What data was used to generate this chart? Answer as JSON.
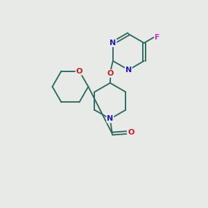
{
  "background_color": "#e8eae8",
  "bond_color": "#2d6b5e",
  "N_color": "#1a1acc",
  "O_color": "#cc1a1a",
  "F_color": "#cc33cc",
  "figsize": [
    3.0,
    3.0
  ],
  "dpi": 100,
  "xlim": [
    0,
    10
  ],
  "ylim": [
    0,
    10
  ],
  "lw": 1.4
}
